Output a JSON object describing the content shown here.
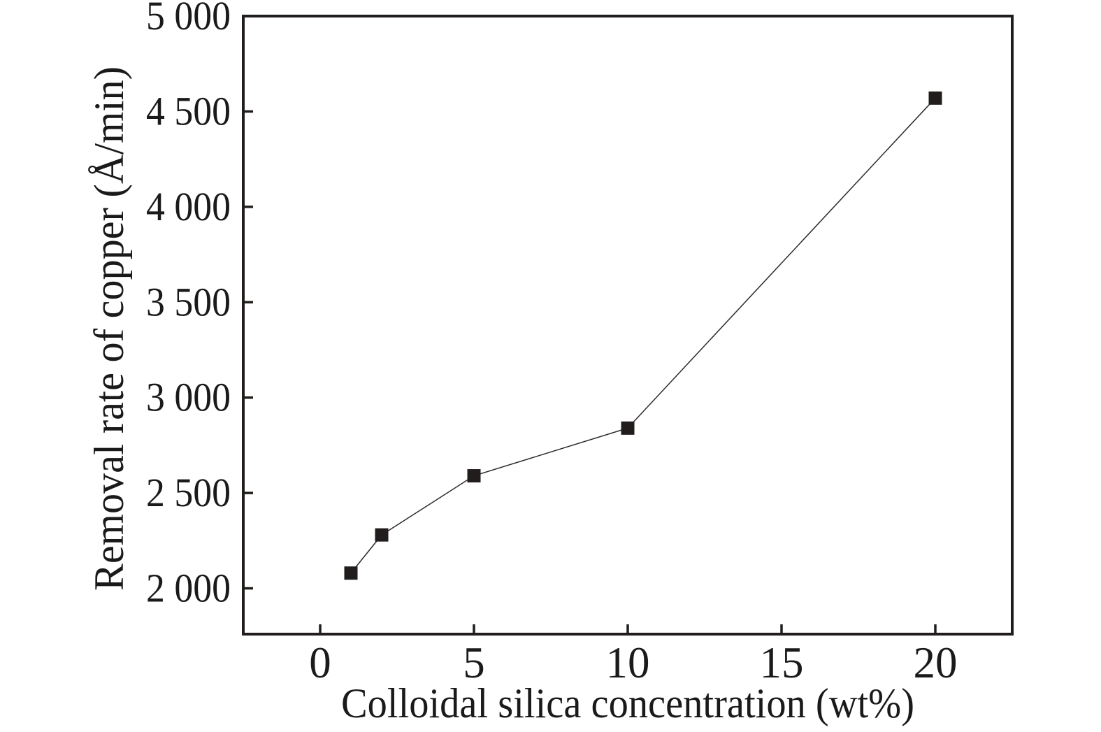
{
  "chart_data": {
    "type": "line",
    "title": "",
    "xlabel": "Colloidal silica concentration (wt%)",
    "ylabel": "Removal rate of copper (Å/min)",
    "series": [
      {
        "name": "removal-rate-of-copper",
        "x": [
          1,
          2,
          5,
          10,
          20
        ],
        "y": [
          2080,
          2280,
          2590,
          2840,
          4570
        ]
      }
    ],
    "xlim": [
      -2.5,
      22.5
    ],
    "ylim": [
      1760,
      5000
    ],
    "xticks": {
      "values": [
        0,
        5,
        10,
        15,
        20
      ],
      "labels": [
        "0",
        "5",
        "10",
        "15",
        "20"
      ]
    },
    "yticks": {
      "values": [
        2000,
        2500,
        3000,
        3500,
        4000,
        4500,
        5000
      ],
      "labels": [
        "2 000",
        "2 500",
        "3 000",
        "3 500",
        "4 000",
        "4 500",
        "5 000"
      ]
    },
    "grid": false,
    "legend": "none",
    "marker": "filled-square",
    "marker_size_px": 19,
    "colors": {
      "marker": "#211d1c",
      "line": "#2e2a29",
      "axis": "#211d1c",
      "text": "#1a1a1a",
      "background": "#ffffff"
    }
  }
}
